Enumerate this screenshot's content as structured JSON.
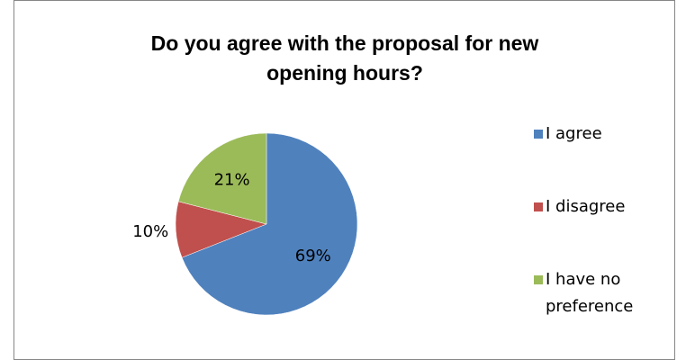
{
  "chart_data": {
    "type": "pie",
    "title": "Do you agree with the proposal for new opening hours?",
    "title_lines": [
      "Do you agree with the proposal for new",
      "opening hours?"
    ],
    "categories": [
      "I agree",
      "I disagree",
      "I have no preference"
    ],
    "values": [
      69,
      10,
      21
    ],
    "value_labels": [
      "69%",
      "10%",
      "21%"
    ],
    "colors": [
      "#4F81BD",
      "#C0504D",
      "#9BBB59"
    ],
    "legend_placement": "right",
    "legend_lines": [
      [
        "I agree"
      ],
      [
        "I disagree"
      ],
      [
        "I have no",
        "preference"
      ]
    ]
  }
}
